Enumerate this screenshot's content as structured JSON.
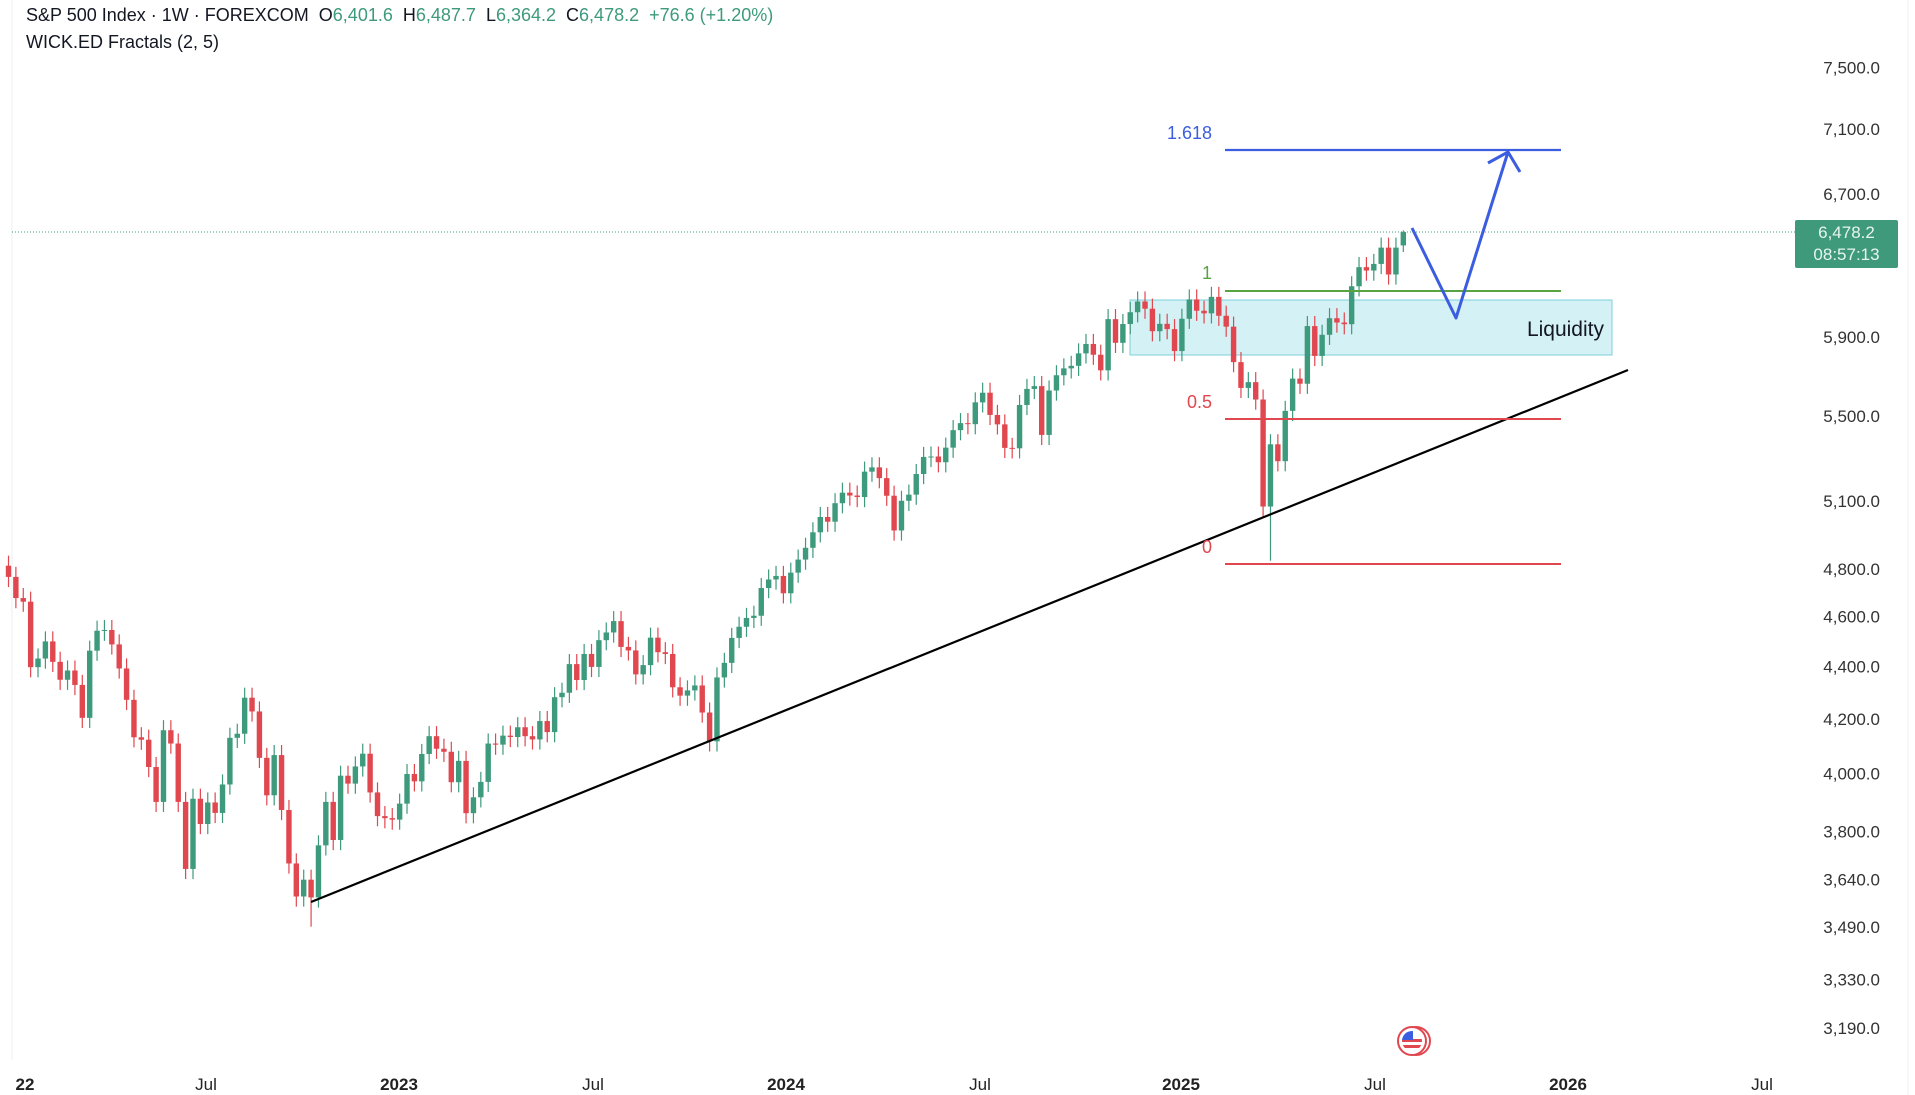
{
  "header": {
    "symbol": "S&P 500 Index · 1W · FOREXCOM",
    "open_label": "O",
    "open": "6,401.6",
    "high_label": "H",
    "high": "6,487.7",
    "low_label": "L",
    "low": "6,364.2",
    "close_label": "C",
    "close": "6,478.2",
    "change": "+76.6 (+1.20%)",
    "indicator": "WICK.ED Fractals (2, 5)"
  },
  "price_label": {
    "price": "6,478.2",
    "countdown": "08:57:13"
  },
  "colors": {
    "up": "#3e9a7c",
    "down": "#e0474f",
    "fib_target": "#3b5de0",
    "fib_one": "#5aa343",
    "fib_red": "#e0474f",
    "liquidity_fill": "#cdeef3",
    "liquidity_border": "#7ccfdc",
    "trendline": "#000000",
    "projection": "#3b5de0"
  },
  "annotations": {
    "fib_1618": "1.618",
    "fib_1": "1",
    "fib_05": "0.5",
    "fib_0": "0",
    "liquidity": "Liquidity"
  },
  "chart_data": {
    "type": "candlestick",
    "interval": "1W",
    "first_week": "2021-12-31",
    "y_scale": "log",
    "y_ticks": [
      7500,
      7100,
      6700,
      5900,
      5500,
      5100,
      4800,
      4600,
      4400,
      4200,
      4000,
      3800,
      3640,
      3490,
      3330,
      3190
    ],
    "y_tick_labels": [
      "7,500.0",
      "7,100.0",
      "6,700.0",
      "5,900.0",
      "5,500.0",
      "5,100.0",
      "4,800.0",
      "4,600.0",
      "4,400.0",
      "4,200.0",
      "4,000.0",
      "3,800.0",
      "3,640.0",
      "3,490.0",
      "3,330.0",
      "3,190.0"
    ],
    "x_tick_labels": [
      "22",
      "Jul",
      "2023",
      "Jul",
      "2024",
      "Jul",
      "2025",
      "Jul",
      "2026",
      "Jul"
    ],
    "closes": [
      4766,
      4677,
      4662,
      4398,
      4432,
      4500,
      4419,
      4349,
      4385,
      4329,
      4204,
      4463,
      4543,
      4546,
      4488,
      4393,
      4272,
      4132,
      4123,
      4024,
      3901,
      4158,
      4109,
      3901,
      3675,
      3912,
      3825,
      3899,
      3863,
      3962,
      4130,
      4145,
      4280,
      4228,
      4057,
      3924,
      4067,
      3873,
      3693,
      3586,
      3640,
      3583,
      3753,
      3901,
      3771,
      3993,
      3965,
      4026,
      4072,
      3934,
      3852,
      3845,
      3840,
      3895,
      3999,
      3973,
      4071,
      4136,
      4090,
      4079,
      3970,
      4046,
      3862,
      3917,
      3971,
      4109,
      4105,
      4138,
      4133,
      4169,
      4136,
      4124,
      4192,
      4151,
      4282,
      4299,
      4410,
      4348,
      4450,
      4399,
      4505,
      4536,
      4582,
      4478,
      4464,
      4370,
      4406,
      4515,
      4457,
      4450,
      4320,
      4288,
      4308,
      4327,
      4224,
      4117,
      4358,
      4415,
      4514,
      4559,
      4595,
      4604,
      4719,
      4755,
      4770,
      4697,
      4784,
      4840,
      4891,
      4959,
      5027,
      5006,
      5089,
      5137,
      5124,
      5117,
      5234,
      5254,
      5204,
      5123,
      4967,
      5100,
      5128,
      5223,
      5303,
      5305,
      5278,
      5347,
      5431,
      5465,
      5460,
      5567,
      5615,
      5505,
      5459,
      5346,
      5344,
      5554,
      5634,
      5648,
      5408,
      5626,
      5703,
      5738,
      5751,
      5815,
      5864,
      5808,
      5728,
      5995,
      5870,
      5969,
      6032,
      6090,
      6051,
      5931,
      5970,
      5942,
      5827,
      5997,
      6101,
      6040,
      6026,
      6115,
      6013,
      5955,
      5770,
      5639,
      5668,
      5581,
      5074,
      5363,
      5283,
      5525,
      5686,
      5660,
      5958,
      5802,
      5912,
      6000,
      5977,
      5968,
      6173,
      6279,
      6260,
      6297,
      6389,
      6238,
      6389,
      6478.2
    ],
    "last_candle": {
      "open": 6401.6,
      "high": 6487.7,
      "low": 6364.2,
      "close": 6478.2
    },
    "notable_lows": {
      "41": 3491,
      "171": 4835
    },
    "fib_levels": {
      "0": 4835,
      "0.5": 5480,
      "1": 6147,
      "1.618": 6940
    },
    "liquidity_zone": [
      5800,
      6150
    ],
    "current_price": 6478.2
  }
}
